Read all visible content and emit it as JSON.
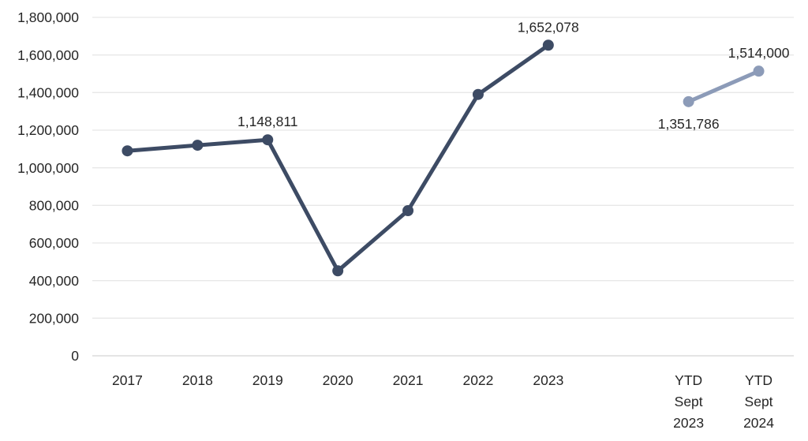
{
  "chart_data": {
    "type": "line",
    "title": "",
    "xlabel": "",
    "ylabel": "",
    "categories": [
      "2017",
      "2018",
      "2019",
      "2020",
      "2021",
      "2022",
      "2023",
      "",
      "YTD\nSept\n2023",
      "YTD\nSept\n2024"
    ],
    "series": [
      {
        "name": "annual",
        "color": "#3D4B64",
        "x_indices": [
          0,
          1,
          2,
          3,
          4,
          5,
          6
        ],
        "values": [
          1090000,
          1120000,
          1148811,
          452000,
          772000,
          1390000,
          1652078
        ],
        "point_labels": [
          null,
          null,
          "1,148,811",
          null,
          null,
          null,
          "1,652,078"
        ],
        "label_positions": [
          null,
          null,
          "above",
          null,
          null,
          null,
          "above"
        ]
      },
      {
        "name": "ytd",
        "color": "#8C9BB8",
        "x_indices": [
          8,
          9
        ],
        "values": [
          1351786,
          1514000
        ],
        "point_labels": [
          "1,351,786",
          "1,514,000"
        ],
        "label_positions": [
          "below",
          "above"
        ]
      }
    ],
    "ylim": [
      0,
      1800000
    ],
    "ytick_step": 200000,
    "ytick_labels": [
      "0",
      "200,000",
      "400,000",
      "600,000",
      "800,000",
      "1,000,000",
      "1,200,000",
      "1,400,000",
      "1,600,000",
      "1,800,000"
    ],
    "grid": true,
    "legend": "none",
    "colors": {
      "grid": "#E8E8E8",
      "axis": "#D4D4D4",
      "text": "#262626",
      "background": "#FFFFFF"
    }
  }
}
